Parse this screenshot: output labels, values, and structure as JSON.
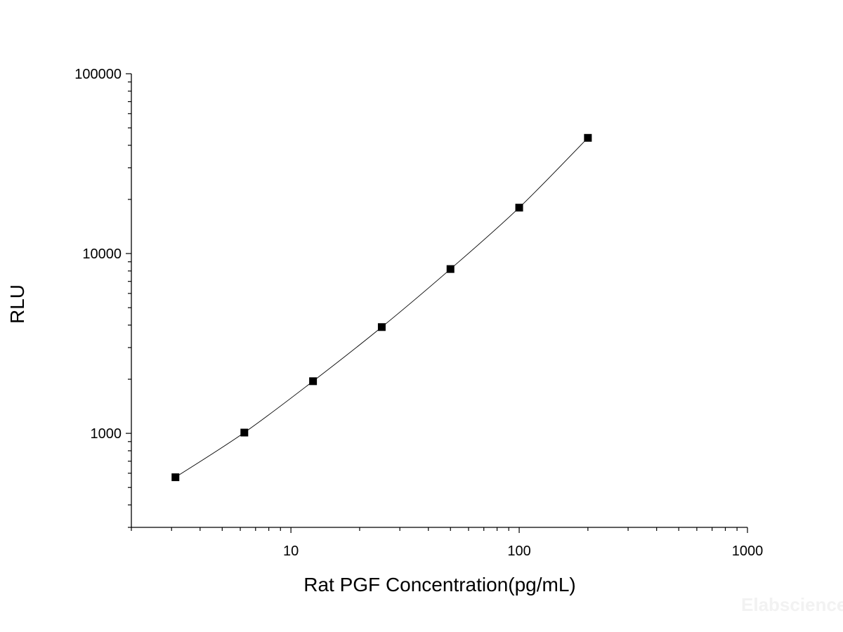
{
  "chart_data": {
    "type": "scatter",
    "xlabel": "Rat PGF Concentration(pg/mL)",
    "ylabel": "RLU",
    "xscale": "log",
    "yscale": "log",
    "xlim": [
      2,
      1000
    ],
    "ylim": [
      300,
      100000
    ],
    "x_ticks": [
      10,
      100,
      1000
    ],
    "x_tick_labels": [
      "10",
      "100",
      "1000"
    ],
    "y_ticks": [
      1000,
      10000,
      100000
    ],
    "y_tick_labels": [
      "1000",
      "10000",
      "100000"
    ],
    "grid": false,
    "legend": "none",
    "series": [
      {
        "x": [
          3.12,
          6.25,
          12.5,
          25,
          50,
          100,
          200
        ],
        "y": [
          570,
          1010,
          1950,
          3900,
          8200,
          18000,
          44000
        ],
        "marker": "square",
        "line": "smooth"
      }
    ],
    "colors": {
      "marker": "#000000",
      "line": "#000000",
      "axis": "#000000"
    }
  },
  "watermark": "Elabscience"
}
